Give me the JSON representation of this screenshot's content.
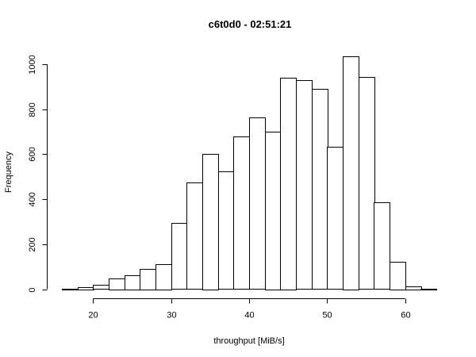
{
  "chart_data": {
    "type": "bar",
    "title": "c6t0d0 - 02:51:21",
    "xlabel": "throughput [MiB/s]",
    "ylabel": "Frequency",
    "bin_width": 2,
    "bins_start": [
      16,
      18,
      20,
      22,
      24,
      26,
      28,
      30,
      32,
      34,
      36,
      38,
      40,
      42,
      44,
      46,
      48,
      50,
      52,
      54,
      56,
      58,
      60,
      62
    ],
    "values": [
      2,
      9,
      18,
      49,
      62,
      90,
      112,
      293,
      473,
      602,
      523,
      678,
      763,
      701,
      940,
      928,
      890,
      632,
      1035,
      943,
      385,
      123,
      14,
      3
    ],
    "xlim": [
      16,
      64
    ],
    "ylim": [
      0,
      1035
    ],
    "x_ticks": [
      20,
      30,
      40,
      50,
      60
    ],
    "y_ticks": [
      0,
      200,
      400,
      600,
      800,
      1000
    ],
    "grid": false
  }
}
